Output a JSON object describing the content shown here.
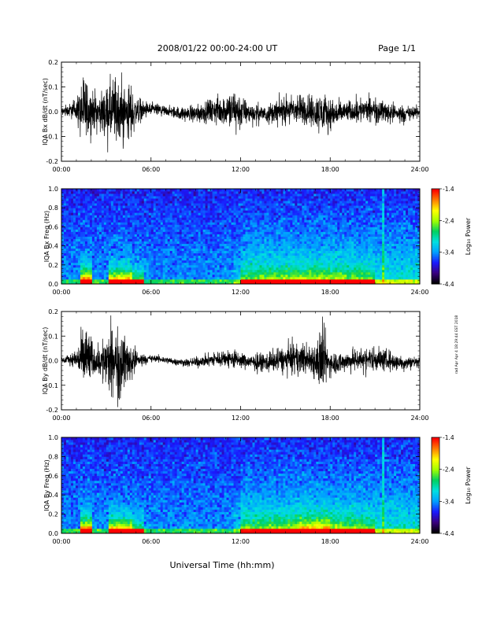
{
  "header": {
    "title": "2008/01/22  00:00-24:00 UT",
    "page": "Page 1/1"
  },
  "footer": {
    "xlabel": "Universal Time (hh:mm)"
  },
  "side_note": "rad Apr Apr 4 18:29:44 EST 2018",
  "colorbar": {
    "label": "Log₁₀ Power",
    "ticks": [
      "-1.4",
      "-2.4",
      "-3.4",
      "-4.4"
    ],
    "range": [
      -4.4,
      -1.4
    ],
    "colors": [
      "#000000",
      "#3a0080",
      "#1a1aff",
      "#00a0ff",
      "#00e0e0",
      "#00d060",
      "#a0ff00",
      "#ffff00",
      "#ff8000",
      "#ff0000"
    ]
  },
  "chart_data": [
    {
      "type": "line",
      "panel": "IQA Bx dB/dt",
      "ylabel": "IQA Bx dB/dt (nT/sec)",
      "xlabel": "",
      "x_ticks": [
        "00:00",
        "06:00",
        "12:00",
        "18:00",
        "24:00"
      ],
      "xlim": [
        0,
        24
      ],
      "ylim": [
        -0.2,
        0.2
      ],
      "y_ticks": [
        "0.2",
        "0.1",
        "0.0",
        "-0.1",
        "-0.2"
      ],
      "envelope": {
        "x": [
          0,
          0.5,
          1.0,
          1.5,
          1.7,
          2.0,
          2.5,
          3.0,
          3.5,
          3.8,
          4.0,
          4.5,
          5.0,
          5.5,
          6.0,
          7.0,
          8.0,
          9.0,
          10.0,
          11.0,
          11.5,
          12.0,
          12.5,
          13.0,
          14.0,
          15.0,
          16.0,
          17.0,
          17.5,
          18.0,
          19.0,
          20.0,
          21.0,
          22.0,
          23.0,
          24.0
        ],
        "amp": [
          0.03,
          0.04,
          0.06,
          0.2,
          0.2,
          0.14,
          0.08,
          0.16,
          0.2,
          0.2,
          0.19,
          0.16,
          0.09,
          0.05,
          0.04,
          0.03,
          0.04,
          0.05,
          0.07,
          0.1,
          0.13,
          0.1,
          0.06,
          0.05,
          0.06,
          0.08,
          0.09,
          0.1,
          0.13,
          0.09,
          0.06,
          0.07,
          0.07,
          0.06,
          0.05,
          0.03
        ]
      }
    },
    {
      "type": "heatmap",
      "panel": "IQA Bx Freq",
      "ylabel": "IQA Bx Freq (Hz)",
      "xlabel": "",
      "x_ticks": [
        "00:00",
        "06:00",
        "12:00",
        "18:00",
        "24:00"
      ],
      "xlim": [
        0,
        24
      ],
      "ylim": [
        0,
        1.0
      ],
      "y_ticks": [
        "1.0",
        "0.8",
        "0.6",
        "0.4",
        "0.2",
        "0.0"
      ],
      "zlim": [
        -4.4,
        -1.4
      ]
    },
    {
      "type": "line",
      "panel": "IQA By dB/dt",
      "ylabel": "IQA By dB/dt (nT/sec)",
      "xlabel": "",
      "x_ticks": [
        "00:00",
        "06:00",
        "12:00",
        "18:00",
        "24:00"
      ],
      "xlim": [
        0,
        24
      ],
      "ylim": [
        -0.2,
        0.2
      ],
      "y_ticks": [
        "0.2",
        "0.1",
        "0.0",
        "-0.1",
        "-0.2"
      ],
      "envelope": {
        "x": [
          0,
          0.5,
          1.0,
          1.5,
          1.7,
          2.0,
          2.5,
          3.0,
          3.5,
          3.8,
          4.0,
          4.5,
          5.0,
          5.5,
          6.0,
          7.0,
          8.0,
          9.0,
          10.0,
          11.0,
          11.5,
          12.0,
          12.5,
          13.0,
          14.0,
          15.0,
          16.0,
          17.0,
          17.3,
          17.5,
          18.0,
          19.0,
          20.0,
          21.0,
          22.0,
          23.0,
          24.0
        ],
        "amp": [
          0.02,
          0.03,
          0.05,
          0.2,
          0.2,
          0.12,
          0.07,
          0.18,
          0.2,
          0.2,
          0.2,
          0.12,
          0.07,
          0.03,
          0.02,
          0.02,
          0.02,
          0.03,
          0.04,
          0.05,
          0.06,
          0.05,
          0.04,
          0.05,
          0.06,
          0.08,
          0.09,
          0.1,
          0.2,
          0.2,
          0.07,
          0.06,
          0.07,
          0.07,
          0.06,
          0.04,
          0.03
        ]
      }
    },
    {
      "type": "heatmap",
      "panel": "IQA By Freq",
      "ylabel": "IQA By Freq (Hz)",
      "xlabel": "Universal Time (hh:mm)",
      "x_ticks": [
        "00:00",
        "06:00",
        "12:00",
        "18:00",
        "24:00"
      ],
      "xlim": [
        0,
        24
      ],
      "ylim": [
        0,
        1.0
      ],
      "y_ticks": [
        "1.0",
        "0.8",
        "0.6",
        "0.4",
        "0.2",
        "0.0"
      ],
      "zlim": [
        -4.4,
        -1.4
      ]
    }
  ]
}
